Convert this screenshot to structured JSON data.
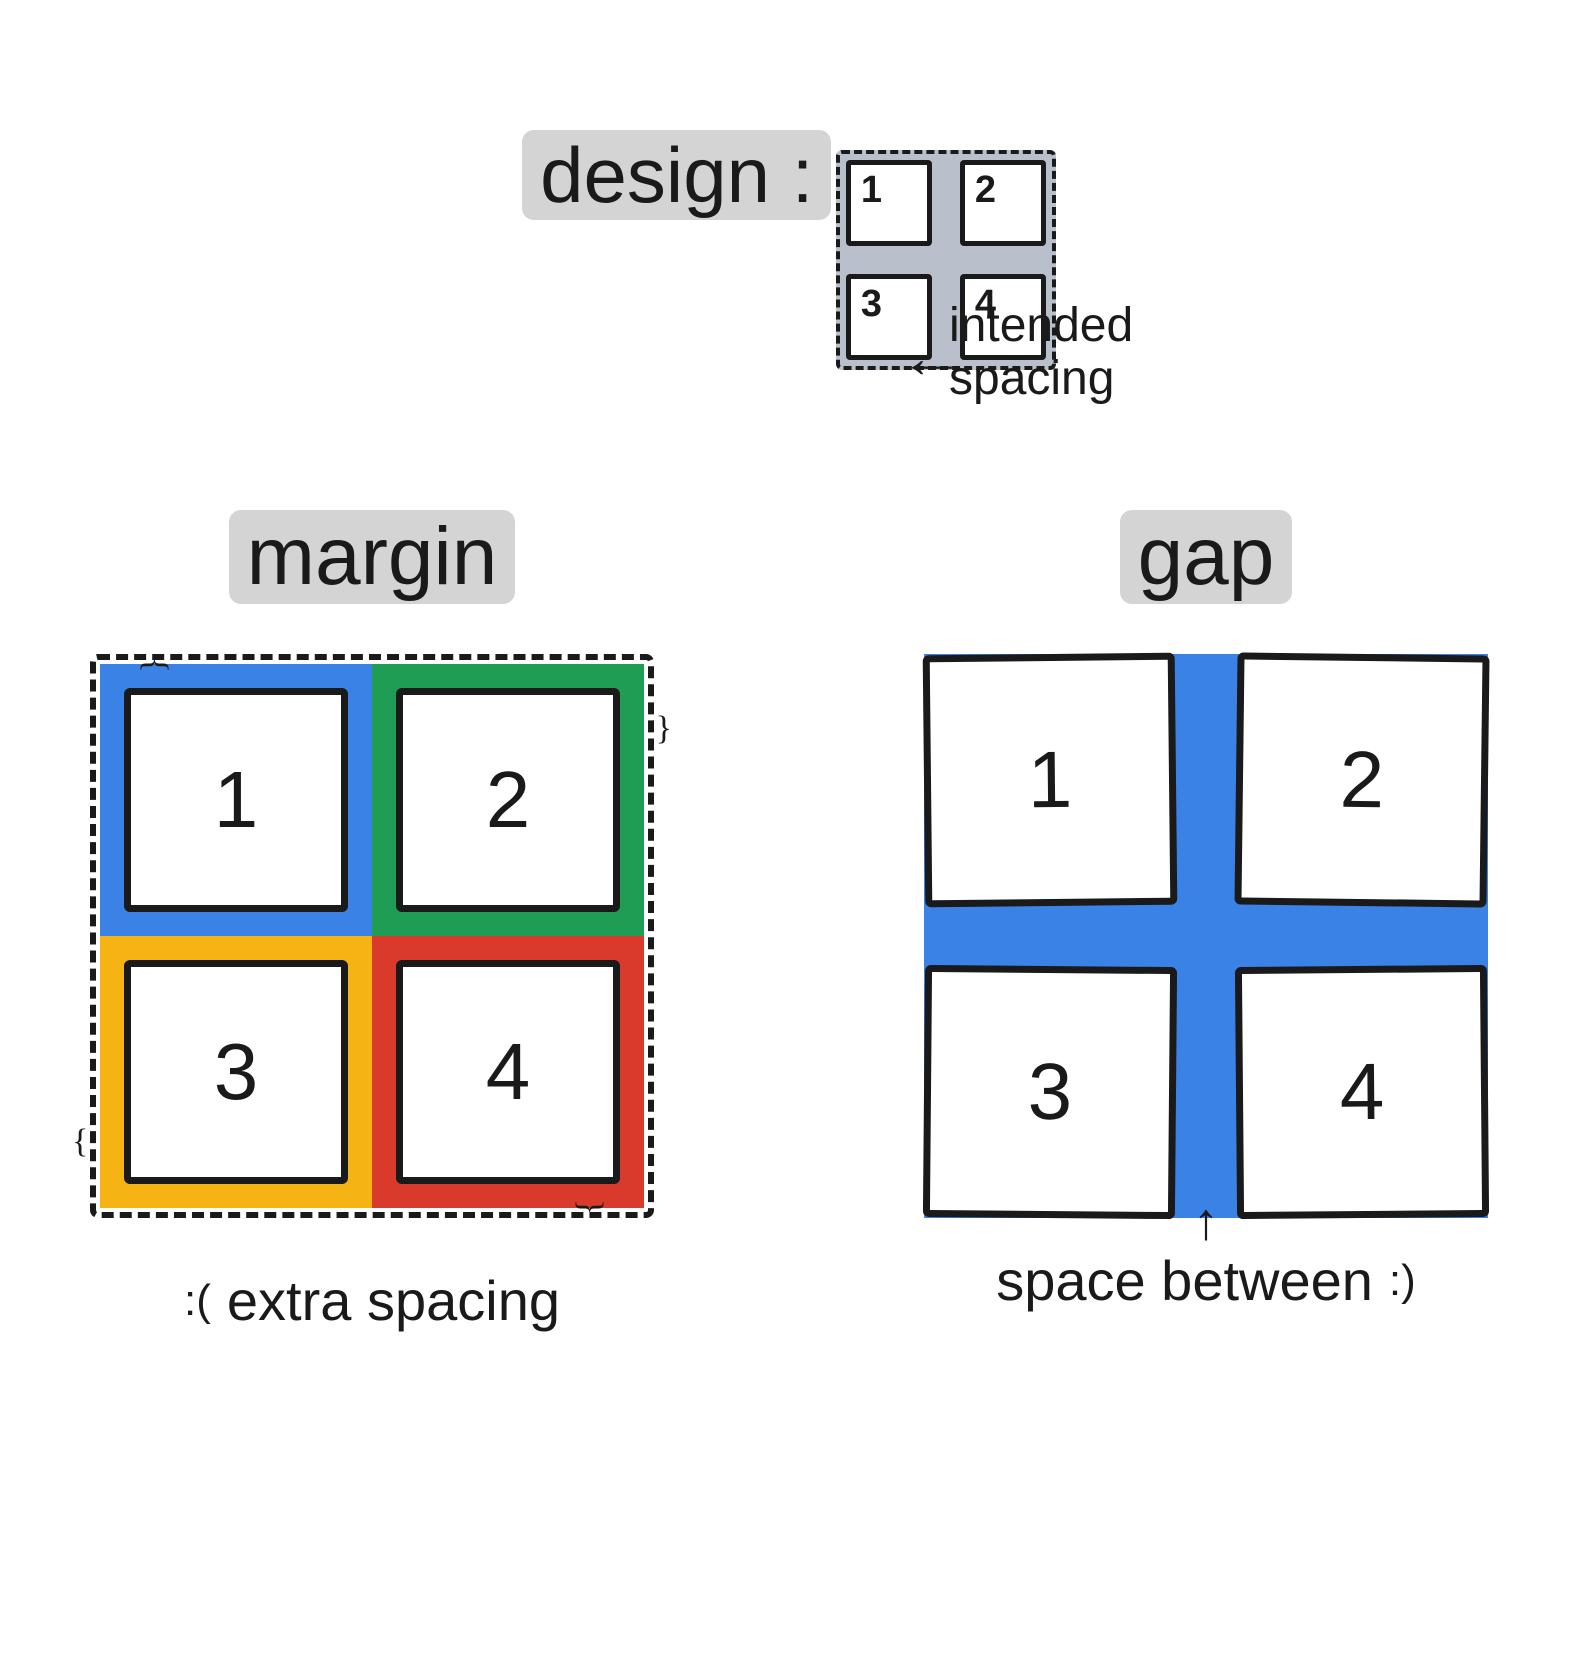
{
  "colors": {
    "highlight_bg": "#d4d4d4",
    "text": "#1a1a1a",
    "design_gap_fill": "#b9c0cb",
    "margin_blue": "#3b82e7",
    "margin_green": "#1f9d55",
    "margin_yellow": "#f5b314",
    "margin_red": "#d93a2b",
    "gap_fill": "#3b82e7",
    "cell_bg": "#ffffff",
    "background": "#ffffff"
  },
  "type": "infographic",
  "style": {
    "font_family": "handwritten",
    "title_fontsize": 82,
    "cell_number_fontsize": 80,
    "caption_fontsize": 56,
    "annotation_fontsize": 48,
    "border_width": 7,
    "dashed_border_width": 6,
    "design_cell_size": 86,
    "design_gap": 28,
    "compare_grid_size": 564,
    "margin_thickness": 24,
    "gap_thickness": 60
  },
  "design": {
    "title": "design :",
    "cells": [
      "1",
      "2",
      "3",
      "4"
    ],
    "annotation": "intended\nspacing",
    "arrow": "←"
  },
  "margin": {
    "title": "margin",
    "cells": [
      "1",
      "2",
      "3",
      "4"
    ],
    "caption_face": ":(",
    "caption": "extra spacing"
  },
  "gap": {
    "title": "gap",
    "cells": [
      "1",
      "2",
      "3",
      "4"
    ],
    "arrow": "↑",
    "caption": "space between",
    "caption_face": ":)"
  }
}
